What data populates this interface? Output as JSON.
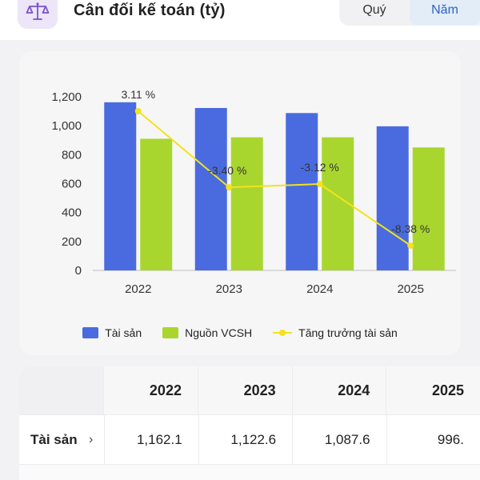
{
  "header": {
    "title": "Cân đối kế toán (tỷ)",
    "icon": "scale-icon",
    "tabs": [
      {
        "label": "Quý",
        "active": false
      },
      {
        "label": "Năm",
        "active": true
      }
    ]
  },
  "chart_data": {
    "type": "bar",
    "categories": [
      "2022",
      "2023",
      "2024",
      "2025"
    ],
    "series": [
      {
        "name": "Tài sản",
        "type": "bar",
        "color": "#4a6bdf",
        "values": [
          1162.1,
          1122.6,
          1087.6,
          996.0
        ]
      },
      {
        "name": "Nguồn VCSH",
        "type": "bar",
        "color": "#a9d62e",
        "values": [
          910,
          920,
          920,
          850
        ]
      },
      {
        "name": "Tăng trưởng tài sản",
        "type": "line",
        "color": "#f3e21c",
        "values": [
          3.11,
          -3.4,
          -3.12,
          -8.38
        ],
        "labels": [
          "3.11 %",
          "-3.40 %",
          "-3.12 %",
          "-8.38 %"
        ]
      }
    ],
    "y_ticks": [
      "1,200",
      "1,000",
      "800",
      "600",
      "400",
      "200",
      "0"
    ],
    "ylim": [
      0,
      1200
    ],
    "line_ylim": [
      -9,
      4
    ],
    "legend": "bottom",
    "grid": false
  },
  "table": {
    "years": [
      "2022",
      "2023",
      "2024",
      "2025"
    ],
    "rows": [
      {
        "label": "Tài sản",
        "values": [
          "1,162.1",
          "1,122.6",
          "1,087.6",
          "996."
        ]
      }
    ]
  }
}
